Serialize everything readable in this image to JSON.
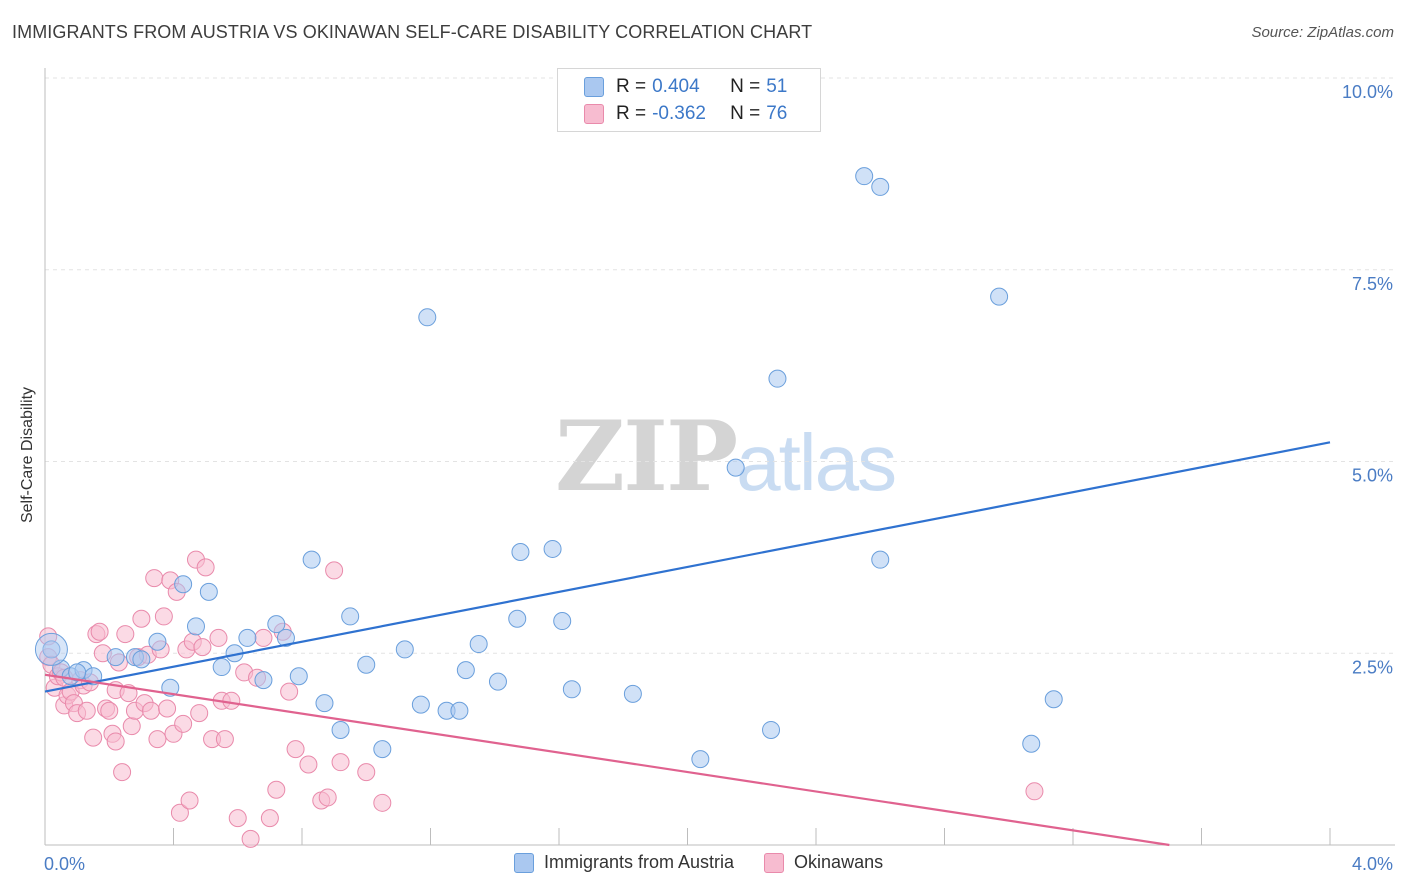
{
  "header": {
    "title": "IMMIGRANTS FROM AUSTRIA VS OKINAWAN SELF-CARE DISABILITY CORRELATION CHART",
    "source": "Source: ZipAtlas.com"
  },
  "watermark": {
    "zip": "ZIP",
    "atlas": "atlas"
  },
  "legend": {
    "rows": [
      {
        "r_label": "R =",
        "r_value": "0.404",
        "n_label": "N =",
        "n_value": "51"
      },
      {
        "r_label": "R =",
        "r_value": "-0.362",
        "n_label": "N =",
        "n_value": "76"
      }
    ]
  },
  "bottom_legend": {
    "austria": "Immigrants from Austria",
    "okinawa": "Okinawans"
  },
  "colors": {
    "austria_fill": "#aac8f0",
    "austria_stroke": "#6a9fdc",
    "austria_line": "#2f72d0",
    "okinawa_fill": "#f7bcd0",
    "okinawa_stroke": "#e98aab",
    "okinawa_line": "#e0628f",
    "tick_text": "#4a7cc4",
    "grid": "#e3e3e3"
  },
  "chart_data": {
    "type": "scatter",
    "title": "IMMIGRANTS FROM AUSTRIA VS OKINAWAN SELF-CARE DISABILITY CORRELATION CHART",
    "xlabel": "",
    "ylabel": "Self-Care Disability",
    "xlim": [
      0.0,
      4.0
    ],
    "ylim": [
      0.0,
      10.0
    ],
    "x_tick_labels": [
      "0.0%",
      "4.0%"
    ],
    "y_ticks": [
      2.5,
      5.0,
      7.5,
      10.0
    ],
    "y_tick_labels": [
      "2.5%",
      "5.0%",
      "7.5%",
      "10.0%"
    ],
    "grid": true,
    "series": [
      {
        "name": "Immigrants from Austria",
        "trend": {
          "x": [
            0.0,
            4.0
          ],
          "y": [
            2.0,
            5.25
          ]
        },
        "points": [
          {
            "x": 0.02,
            "y": 2.55
          },
          {
            "x": 0.05,
            "y": 2.3
          },
          {
            "x": 0.08,
            "y": 2.2
          },
          {
            "x": 0.12,
            "y": 2.28
          },
          {
            "x": 0.15,
            "y": 2.2
          },
          {
            "x": 0.22,
            "y": 2.45
          },
          {
            "x": 0.28,
            "y": 2.45
          },
          {
            "x": 0.35,
            "y": 2.65
          },
          {
            "x": 0.39,
            "y": 2.05
          },
          {
            "x": 0.43,
            "y": 3.4
          },
          {
            "x": 0.47,
            "y": 2.85
          },
          {
            "x": 0.51,
            "y": 3.3
          },
          {
            "x": 0.55,
            "y": 2.32
          },
          {
            "x": 0.59,
            "y": 2.5
          },
          {
            "x": 0.63,
            "y": 2.7
          },
          {
            "x": 0.68,
            "y": 2.15
          },
          {
            "x": 0.72,
            "y": 2.88
          },
          {
            "x": 0.75,
            "y": 2.7
          },
          {
            "x": 0.79,
            "y": 2.2
          },
          {
            "x": 0.83,
            "y": 3.72
          },
          {
            "x": 0.87,
            "y": 1.85
          },
          {
            "x": 0.92,
            "y": 1.5
          },
          {
            "x": 0.95,
            "y": 2.98
          },
          {
            "x": 1.0,
            "y": 2.35
          },
          {
            "x": 1.05,
            "y": 1.25
          },
          {
            "x": 1.12,
            "y": 2.55
          },
          {
            "x": 1.17,
            "y": 1.83
          },
          {
            "x": 1.19,
            "y": 6.88
          },
          {
            "x": 1.25,
            "y": 1.75
          },
          {
            "x": 1.29,
            "y": 1.75
          },
          {
            "x": 1.31,
            "y": 2.28
          },
          {
            "x": 1.35,
            "y": 2.62
          },
          {
            "x": 1.41,
            "y": 2.13
          },
          {
            "x": 1.47,
            "y": 2.95
          },
          {
            "x": 1.48,
            "y": 3.82
          },
          {
            "x": 1.58,
            "y": 3.86
          },
          {
            "x": 1.61,
            "y": 2.92
          },
          {
            "x": 1.64,
            "y": 2.03
          },
          {
            "x": 1.83,
            "y": 1.97
          },
          {
            "x": 2.04,
            "y": 1.12
          },
          {
            "x": 2.15,
            "y": 4.92
          },
          {
            "x": 2.26,
            "y": 1.5
          },
          {
            "x": 2.28,
            "y": 6.08
          },
          {
            "x": 2.55,
            "y": 8.72
          },
          {
            "x": 2.6,
            "y": 8.58
          },
          {
            "x": 2.6,
            "y": 3.72
          },
          {
            "x": 2.97,
            "y": 7.15
          },
          {
            "x": 3.07,
            "y": 1.32
          },
          {
            "x": 3.14,
            "y": 1.9
          },
          {
            "x": 0.1,
            "y": 2.25
          },
          {
            "x": 0.3,
            "y": 2.42
          }
        ]
      },
      {
        "name": "Okinawans",
        "trend": {
          "x": [
            0.0,
            3.5
          ],
          "y": [
            2.22,
            0.0
          ]
        },
        "points": [
          {
            "x": 0.01,
            "y": 2.72
          },
          {
            "x": 0.01,
            "y": 2.45
          },
          {
            "x": 0.02,
            "y": 2.35
          },
          {
            "x": 0.03,
            "y": 2.05
          },
          {
            "x": 0.04,
            "y": 2.2
          },
          {
            "x": 0.05,
            "y": 2.25
          },
          {
            "x": 0.06,
            "y": 2.18
          },
          {
            "x": 0.06,
            "y": 1.82
          },
          {
            "x": 0.07,
            "y": 1.95
          },
          {
            "x": 0.08,
            "y": 2.0
          },
          {
            "x": 0.09,
            "y": 1.85
          },
          {
            "x": 0.1,
            "y": 1.72
          },
          {
            "x": 0.11,
            "y": 2.15
          },
          {
            "x": 0.12,
            "y": 2.08
          },
          {
            "x": 0.13,
            "y": 1.75
          },
          {
            "x": 0.14,
            "y": 2.12
          },
          {
            "x": 0.15,
            "y": 1.4
          },
          {
            "x": 0.16,
            "y": 2.75
          },
          {
            "x": 0.17,
            "y": 2.78
          },
          {
            "x": 0.18,
            "y": 2.5
          },
          {
            "x": 0.19,
            "y": 1.78
          },
          {
            "x": 0.2,
            "y": 1.75
          },
          {
            "x": 0.21,
            "y": 1.45
          },
          {
            "x": 0.22,
            "y": 1.35
          },
          {
            "x": 0.22,
            "y": 2.02
          },
          {
            "x": 0.23,
            "y": 2.38
          },
          {
            "x": 0.24,
            "y": 0.95
          },
          {
            "x": 0.25,
            "y": 2.75
          },
          {
            "x": 0.26,
            "y": 1.98
          },
          {
            "x": 0.27,
            "y": 1.55
          },
          {
            "x": 0.28,
            "y": 1.75
          },
          {
            "x": 0.29,
            "y": 2.45
          },
          {
            "x": 0.3,
            "y": 2.95
          },
          {
            "x": 0.31,
            "y": 1.85
          },
          {
            "x": 0.32,
            "y": 2.48
          },
          {
            "x": 0.33,
            "y": 1.75
          },
          {
            "x": 0.34,
            "y": 3.48
          },
          {
            "x": 0.35,
            "y": 1.38
          },
          {
            "x": 0.36,
            "y": 2.55
          },
          {
            "x": 0.37,
            "y": 2.98
          },
          {
            "x": 0.38,
            "y": 1.78
          },
          {
            "x": 0.39,
            "y": 3.45
          },
          {
            "x": 0.4,
            "y": 1.45
          },
          {
            "x": 0.41,
            "y": 3.3
          },
          {
            "x": 0.42,
            "y": 0.42
          },
          {
            "x": 0.43,
            "y": 1.58
          },
          {
            "x": 0.44,
            "y": 2.55
          },
          {
            "x": 0.45,
            "y": 0.58
          },
          {
            "x": 0.46,
            "y": 2.65
          },
          {
            "x": 0.47,
            "y": 3.72
          },
          {
            "x": 0.48,
            "y": 1.72
          },
          {
            "x": 0.49,
            "y": 2.58
          },
          {
            "x": 0.5,
            "y": 3.62
          },
          {
            "x": 0.52,
            "y": 1.38
          },
          {
            "x": 0.54,
            "y": 2.7
          },
          {
            "x": 0.55,
            "y": 1.88
          },
          {
            "x": 0.56,
            "y": 1.38
          },
          {
            "x": 0.58,
            "y": 1.88
          },
          {
            "x": 0.6,
            "y": 0.35
          },
          {
            "x": 0.62,
            "y": 2.25
          },
          {
            "x": 0.64,
            "y": 0.08
          },
          {
            "x": 0.66,
            "y": 2.18
          },
          {
            "x": 0.68,
            "y": 2.7
          },
          {
            "x": 0.7,
            "y": 0.35
          },
          {
            "x": 0.72,
            "y": 0.72
          },
          {
            "x": 0.74,
            "y": 2.78
          },
          {
            "x": 0.76,
            "y": 2.0
          },
          {
            "x": 0.78,
            "y": 1.25
          },
          {
            "x": 0.82,
            "y": 1.05
          },
          {
            "x": 0.86,
            "y": 0.58
          },
          {
            "x": 0.88,
            "y": 0.62
          },
          {
            "x": 0.9,
            "y": 3.58
          },
          {
            "x": 0.92,
            "y": 1.08
          },
          {
            "x": 1.0,
            "y": 0.95
          },
          {
            "x": 1.05,
            "y": 0.55
          },
          {
            "x": 3.08,
            "y": 0.7
          }
        ]
      }
    ]
  }
}
